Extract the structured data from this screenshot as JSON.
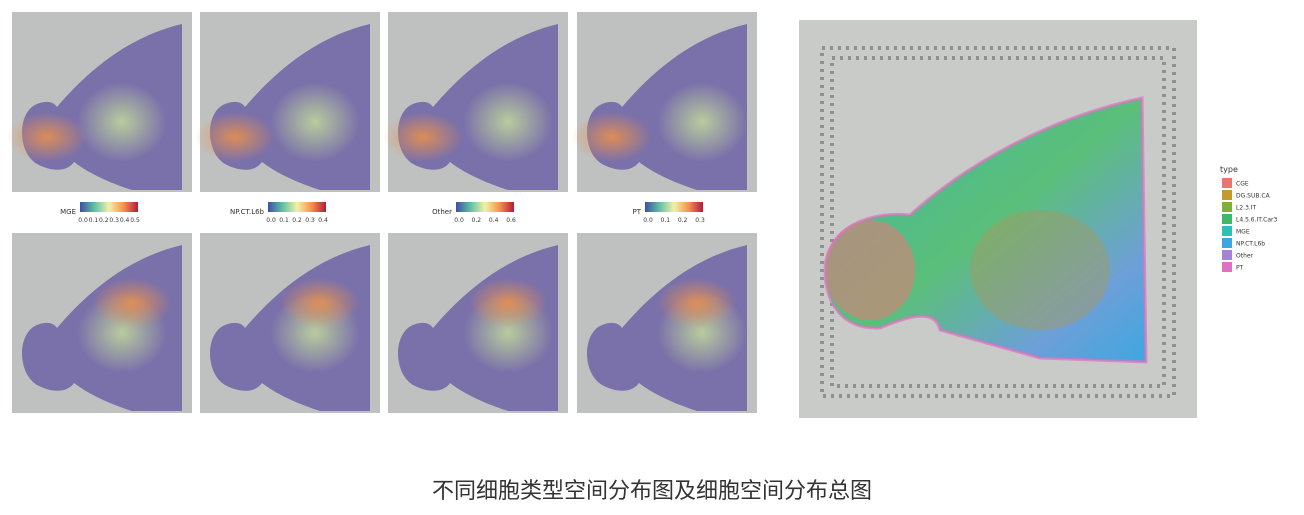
{
  "colorbars": [
    {
      "title": "MGE",
      "ticks": [
        "0.0",
        "0.1",
        "0.2",
        "0.3",
        "0.4",
        "0.5"
      ]
    },
    {
      "title": "NP.CT.L6b",
      "ticks": [
        "0.0",
        "0.1",
        "0.2",
        "0.3",
        "0.4"
      ]
    },
    {
      "title": "Other",
      "ticks": [
        "0.0",
        "0.2",
        "0.4",
        "0.6"
      ]
    },
    {
      "title": "PT",
      "ticks": [
        "0.0",
        "0.1",
        "0.2",
        "0.3"
      ]
    }
  ],
  "legend": {
    "title": "type",
    "items": [
      {
        "label": "CGE",
        "color": "#e8766f"
      },
      {
        "label": "DG.SUB.CA",
        "color": "#c49a2c"
      },
      {
        "label": "L2.3.IT",
        "color": "#7fae3a"
      },
      {
        "label": "L4.5.6.IT.Car3",
        "color": "#3fb86b"
      },
      {
        "label": "MGE",
        "color": "#2fbfb5"
      },
      {
        "label": "NP.CT.L6b",
        "color": "#3ea7e0"
      },
      {
        "label": "Other",
        "color": "#a484d6"
      },
      {
        "label": "PT",
        "color": "#e070c0"
      }
    ]
  },
  "caption": "不同细胞类型空间分布图及细胞空间分布总图"
}
